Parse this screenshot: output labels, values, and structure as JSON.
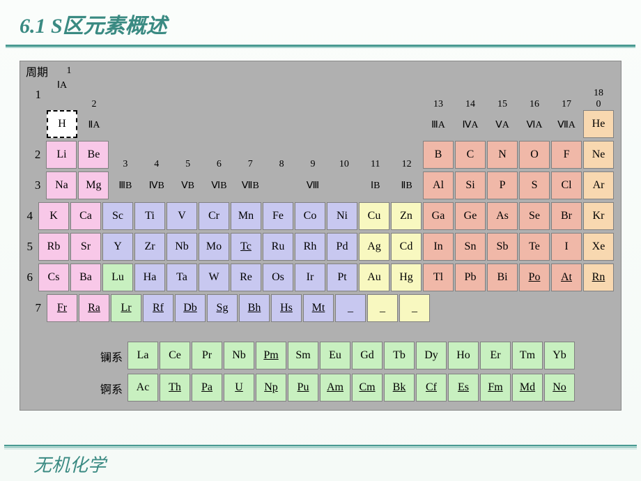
{
  "title": "6.1 S区元素概述",
  "footer": "无机化学",
  "period_label": "周期",
  "colors": {
    "background_slide": "#fafdfb",
    "title_color": "#3a8a82",
    "accent_line": "#4a9a92",
    "table_bg": "#b0b0b0",
    "s_block": "#f8c8e8",
    "d_block": "#c8c8f0",
    "ds_block": "#f8f8c0",
    "p_block_main": "#f0b8a8",
    "p_block_noble": "#f8d8b0",
    "f_block": "#c8f0c0",
    "cell_border": "#808080"
  },
  "group_numbers": [
    "1",
    "2",
    "3",
    "4",
    "5",
    "6",
    "7",
    "8",
    "9",
    "10",
    "11",
    "12",
    "13",
    "14",
    "15",
    "16",
    "17",
    "18"
  ],
  "group_romans": [
    "ⅠA",
    "ⅡA",
    "ⅢB",
    "ⅣB",
    "ⅤB",
    "ⅥB",
    "ⅦB",
    "Ⅷ",
    "ⅠB",
    "ⅡB",
    "ⅢA",
    "ⅣA",
    "ⅤA",
    "ⅥA",
    "ⅦA",
    "0"
  ],
  "periods": [
    "1",
    "2",
    "3",
    "4",
    "5",
    "6",
    "7"
  ],
  "series_labels": {
    "lan": "镧系",
    "act": "锕系"
  },
  "elements": {
    "r1": [
      {
        "s": "H",
        "c": "sel"
      }
    ],
    "r1_right": [
      {
        "s": "He",
        "c": "peach"
      }
    ],
    "r2_left": [
      {
        "s": "Li",
        "c": "pink"
      },
      {
        "s": "Be",
        "c": "pink"
      }
    ],
    "r2_right": [
      {
        "s": "B",
        "c": "salmon"
      },
      {
        "s": "C",
        "c": "salmon"
      },
      {
        "s": "N",
        "c": "salmon"
      },
      {
        "s": "O",
        "c": "salmon"
      },
      {
        "s": "F",
        "c": "salmon"
      },
      {
        "s": "Ne",
        "c": "peach"
      }
    ],
    "r3_left": [
      {
        "s": "Na",
        "c": "pink"
      },
      {
        "s": "Mg",
        "c": "pink"
      }
    ],
    "r3_right": [
      {
        "s": "Al",
        "c": "salmon"
      },
      {
        "s": "Si",
        "c": "salmon"
      },
      {
        "s": "P",
        "c": "salmon"
      },
      {
        "s": "S",
        "c": "salmon"
      },
      {
        "s": "Cl",
        "c": "salmon"
      },
      {
        "s": "Ar",
        "c": "peach"
      }
    ],
    "r4": [
      {
        "s": "K",
        "c": "pink"
      },
      {
        "s": "Ca",
        "c": "pink"
      },
      {
        "s": "Sc",
        "c": "blue"
      },
      {
        "s": "Ti",
        "c": "blue"
      },
      {
        "s": "V",
        "c": "blue"
      },
      {
        "s": "Cr",
        "c": "blue"
      },
      {
        "s": "Mn",
        "c": "blue"
      },
      {
        "s": "Fe",
        "c": "blue"
      },
      {
        "s": "Co",
        "c": "blue"
      },
      {
        "s": "Ni",
        "c": "blue"
      },
      {
        "s": "Cu",
        "c": "yellow"
      },
      {
        "s": "Zn",
        "c": "yellow"
      },
      {
        "s": "Ga",
        "c": "salmon"
      },
      {
        "s": "Ge",
        "c": "salmon"
      },
      {
        "s": "As",
        "c": "salmon"
      },
      {
        "s": "Se",
        "c": "salmon"
      },
      {
        "s": "Br",
        "c": "salmon"
      },
      {
        "s": "Kr",
        "c": "peach"
      }
    ],
    "r5": [
      {
        "s": "Rb",
        "c": "pink"
      },
      {
        "s": "Sr",
        "c": "pink"
      },
      {
        "s": "Y",
        "c": "blue"
      },
      {
        "s": "Zr",
        "c": "blue"
      },
      {
        "s": "Nb",
        "c": "blue"
      },
      {
        "s": "Mo",
        "c": "blue"
      },
      {
        "s": "Tc",
        "c": "blue",
        "u": true
      },
      {
        "s": "Ru",
        "c": "blue"
      },
      {
        "s": "Rh",
        "c": "blue"
      },
      {
        "s": "Pd",
        "c": "blue"
      },
      {
        "s": "Ag",
        "c": "yellow"
      },
      {
        "s": "Cd",
        "c": "yellow"
      },
      {
        "s": "In",
        "c": "salmon"
      },
      {
        "s": "Sn",
        "c": "salmon"
      },
      {
        "s": "Sb",
        "c": "salmon"
      },
      {
        "s": "Te",
        "c": "salmon"
      },
      {
        "s": "I",
        "c": "salmon"
      },
      {
        "s": "Xe",
        "c": "peach"
      }
    ],
    "r6": [
      {
        "s": "Cs",
        "c": "pink"
      },
      {
        "s": "Ba",
        "c": "pink"
      },
      {
        "s": "Lu",
        "c": "green"
      },
      {
        "s": "Ha",
        "c": "blue"
      },
      {
        "s": "Ta",
        "c": "blue"
      },
      {
        "s": "W",
        "c": "blue"
      },
      {
        "s": "Re",
        "c": "blue"
      },
      {
        "s": "Os",
        "c": "blue"
      },
      {
        "s": "Ir",
        "c": "blue"
      },
      {
        "s": "Pt",
        "c": "blue"
      },
      {
        "s": "Au",
        "c": "yellow"
      },
      {
        "s": "Hg",
        "c": "yellow"
      },
      {
        "s": "Tl",
        "c": "salmon"
      },
      {
        "s": "Pb",
        "c": "salmon"
      },
      {
        "s": "Bi",
        "c": "salmon"
      },
      {
        "s": "Po",
        "c": "salmon",
        "u": true
      },
      {
        "s": "At",
        "c": "salmon",
        "u": true
      },
      {
        "s": "Rn",
        "c": "peach",
        "u": true
      }
    ],
    "r7": [
      {
        "s": "Fr",
        "c": "pink",
        "u": true
      },
      {
        "s": "Ra",
        "c": "pink",
        "u": true
      },
      {
        "s": "Lr",
        "c": "green",
        "u": true
      },
      {
        "s": "Rf",
        "c": "blue",
        "u": true
      },
      {
        "s": "Db",
        "c": "blue",
        "u": true
      },
      {
        "s": "Sg",
        "c": "blue",
        "u": true
      },
      {
        "s": "Bh",
        "c": "blue",
        "u": true
      },
      {
        "s": "Hs",
        "c": "blue",
        "u": true
      },
      {
        "s": "Mt",
        "c": "blue",
        "u": true
      },
      {
        "s": "_",
        "c": "blue"
      },
      {
        "s": "_",
        "c": "yellow"
      },
      {
        "s": "_",
        "c": "yellow"
      }
    ],
    "lan": [
      {
        "s": "La"
      },
      {
        "s": "Ce"
      },
      {
        "s": "Pr"
      },
      {
        "s": "Nb"
      },
      {
        "s": "Pm",
        "u": true
      },
      {
        "s": "Sm"
      },
      {
        "s": "Eu"
      },
      {
        "s": "Gd"
      },
      {
        "s": "Tb"
      },
      {
        "s": "Dy"
      },
      {
        "s": "Ho"
      },
      {
        "s": "Er"
      },
      {
        "s": "Tm"
      },
      {
        "s": "Yb"
      }
    ],
    "act": [
      {
        "s": "Ac"
      },
      {
        "s": "Th",
        "u": true
      },
      {
        "s": "Pa",
        "u": true
      },
      {
        "s": "U",
        "u": true
      },
      {
        "s": "Np",
        "u": true
      },
      {
        "s": "Pu",
        "u": true
      },
      {
        "s": "Am",
        "u": true
      },
      {
        "s": "Cm",
        "u": true
      },
      {
        "s": "Bk",
        "u": true
      },
      {
        "s": "Cf",
        "u": true
      },
      {
        "s": "Es",
        "u": true
      },
      {
        "s": "Fm",
        "u": true
      },
      {
        "s": "Md",
        "u": true
      },
      {
        "s": "No",
        "u": true
      }
    ]
  }
}
